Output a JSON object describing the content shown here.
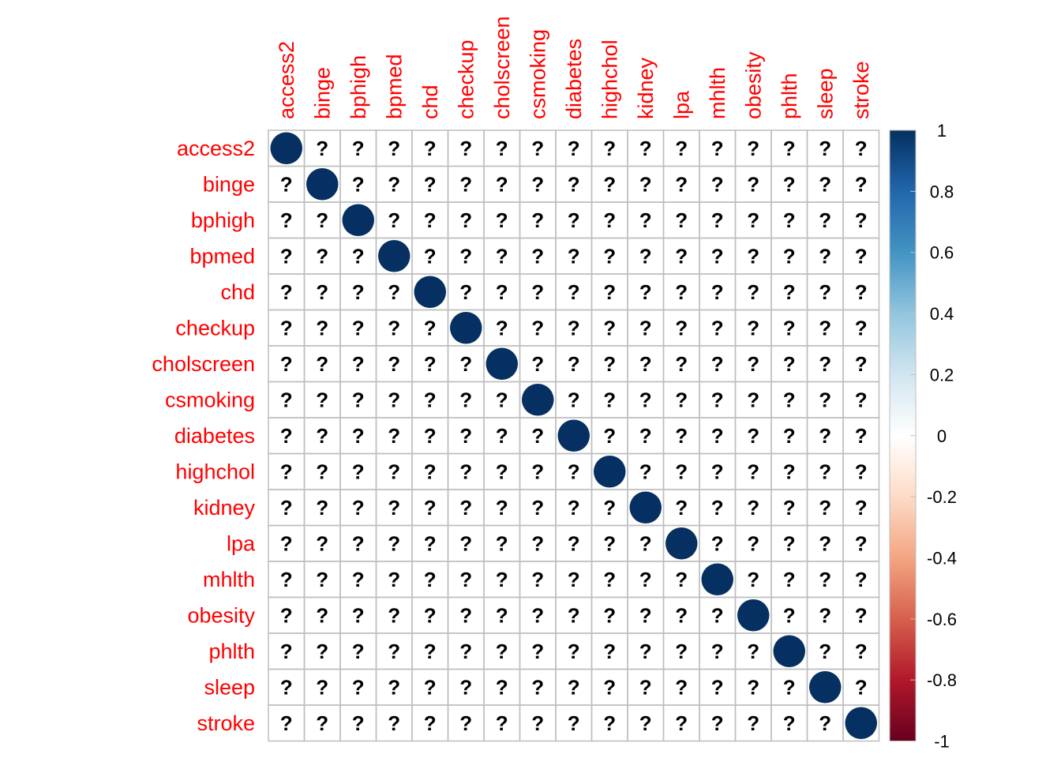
{
  "chart_data": {
    "type": "heatmap",
    "variables": [
      "access2",
      "binge",
      "bphigh",
      "bpmed",
      "chd",
      "checkup",
      "cholscreen",
      "csmoking",
      "diabetes",
      "highchol",
      "kidney",
      "lpa",
      "mhlth",
      "obesity",
      "phlth",
      "sleep",
      "stroke"
    ],
    "diagonal_value": 1,
    "off_diagonal_value": null,
    "missing_symbol": "?",
    "colorbar": {
      "ticks": [
        "1",
        "0.8",
        "0.6",
        "0.4",
        "0.2",
        "0",
        "-0.2",
        "-0.4",
        "-0.6",
        "-0.8",
        "-1"
      ],
      "range": [
        -1,
        1
      ],
      "colors": [
        "#67001f",
        "#b2182b",
        "#d6604d",
        "#f4a582",
        "#fddbc7",
        "#ffffff",
        "#d1e5f0",
        "#92c5de",
        "#4393c3",
        "#2166ac",
        "#053061"
      ]
    },
    "label_color": "#ff0000",
    "grid": true
  }
}
